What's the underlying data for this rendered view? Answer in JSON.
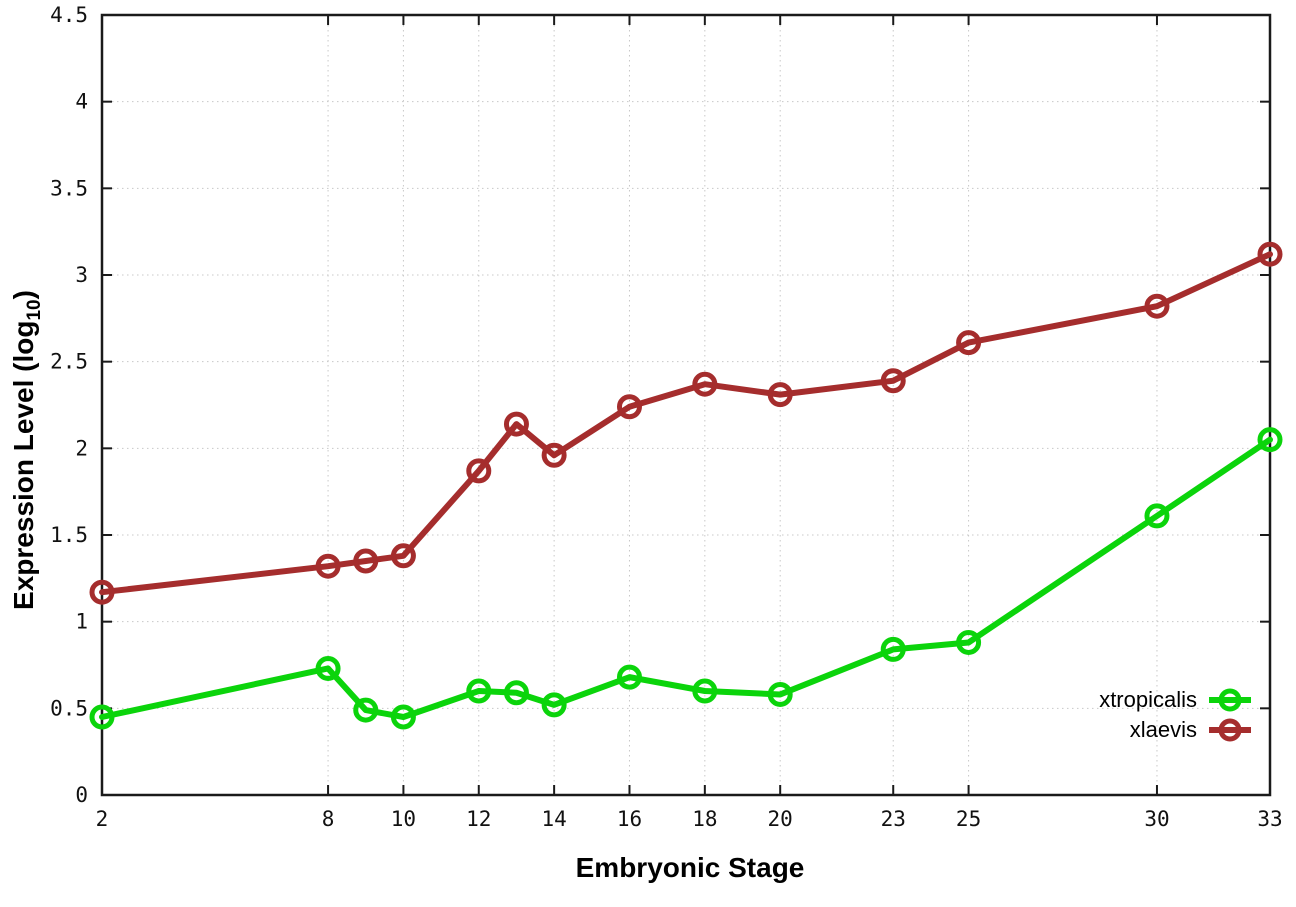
{
  "chart_data": {
    "type": "line",
    "title": "",
    "xlabel": "Embryonic Stage",
    "ylabel_prefix": "Expression Level (log",
    "ylabel_sub": "10",
    "ylabel_suffix": ")",
    "x": [
      2,
      8,
      9,
      10,
      12,
      13,
      14,
      16,
      18,
      20,
      23,
      25,
      30,
      33
    ],
    "xticks": [
      2,
      8,
      10,
      12,
      14,
      16,
      18,
      20,
      23,
      25,
      30,
      33
    ],
    "yticks": [
      0,
      0.5,
      1,
      1.5,
      2,
      2.5,
      3,
      3.5,
      4,
      4.5
    ],
    "ytick_labels": [
      "0",
      "0.5",
      "1",
      "1.5",
      "2",
      "2.5",
      "3",
      "3.5",
      "4",
      "4.5"
    ],
    "xlim": [
      2,
      33
    ],
    "ylim": [
      0,
      4.5
    ],
    "grid": true,
    "grid_style": "dotted",
    "legend_position": "inside-bottom-right",
    "series": [
      {
        "name": "xtropicalis",
        "color": "#0bd40b",
        "values": [
          0.45,
          0.73,
          0.49,
          0.45,
          0.6,
          0.59,
          0.52,
          0.68,
          0.6,
          0.58,
          0.84,
          0.88,
          1.61,
          2.05
        ]
      },
      {
        "name": "xlaevis",
        "color": "#a52d2d",
        "values": [
          1.17,
          1.32,
          1.35,
          1.38,
          1.87,
          2.14,
          1.96,
          2.24,
          2.37,
          2.31,
          2.39,
          2.61,
          2.82,
          3.12
        ]
      }
    ],
    "marker": "open-circle",
    "line_width": 6,
    "background": "#ffffff",
    "border_color": "#1a1a1a"
  }
}
